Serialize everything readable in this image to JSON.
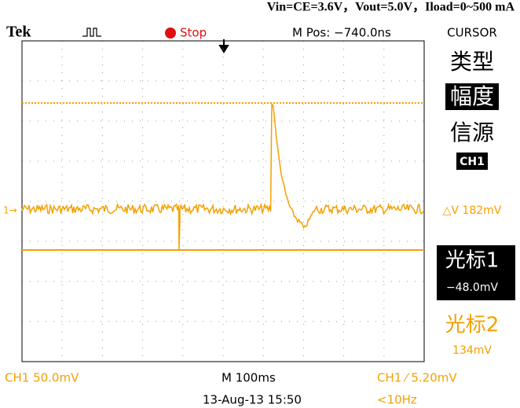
{
  "caption": "Vin=CE=3.6V，Vout=5.0V，Iload=0~500 mA",
  "header": {
    "brand": "Tek",
    "status": "Stop",
    "position": "M Pos: −740.0ns",
    "menu_title": "CURSOR"
  },
  "menu": {
    "type_label": "类型",
    "type_value": "幅度",
    "source_label": "信源",
    "source_value": "CH1",
    "delta": "△V 182mV",
    "cursor1_label": "光标1",
    "cursor1_value": "−48.0mV",
    "cursor2_label": "光标2",
    "cursor2_value": "134mV"
  },
  "channel_marker": "1→",
  "footer": {
    "channel_scale": "CH1  50.0mV",
    "timebase": "M 100ms",
    "trigger": "CH1 ⁄ 5.20mV",
    "datetime": "13-Aug-13 15:50",
    "frequency": "<10Hz"
  }
}
